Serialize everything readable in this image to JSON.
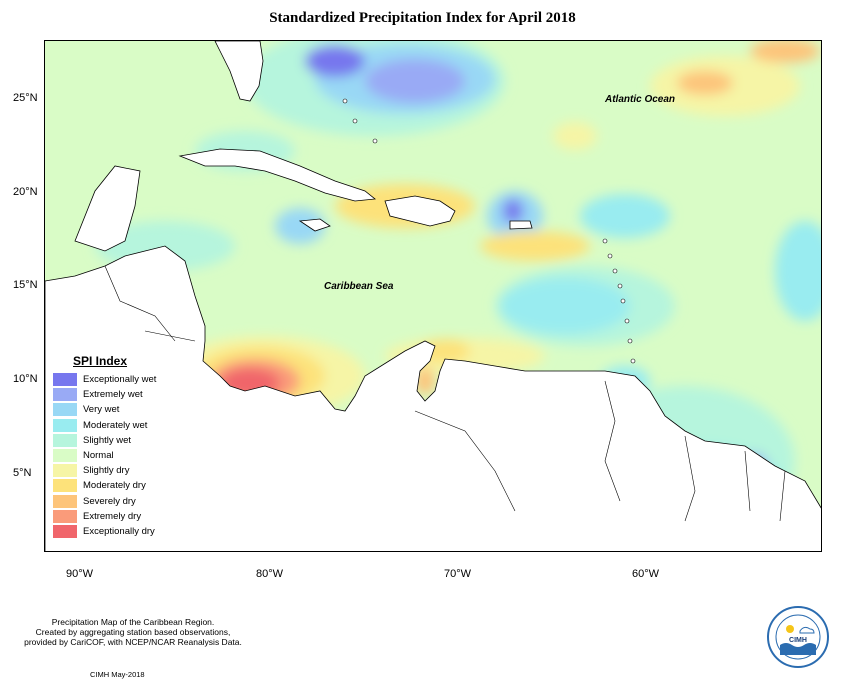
{
  "title": "Standardized Precipitation Index for April 2018",
  "lat_ticks": [
    "25°N",
    "20°N",
    "15°N",
    "10°N",
    "5°N"
  ],
  "lon_ticks": [
    "90°W",
    "80°W",
    "70°W",
    "60°W"
  ],
  "labels": {
    "atlantic": "Atlantic Ocean",
    "caribbean": "Caribbean Sea"
  },
  "legend": {
    "title": "SPI Index",
    "items": [
      {
        "label": "Exceptionally wet",
        "color": "#7777ee"
      },
      {
        "label": "Extremely wet",
        "color": "#99aaf5"
      },
      {
        "label": "Very wet",
        "color": "#99d8f5"
      },
      {
        "label": "Moderately wet",
        "color": "#99ecf0"
      },
      {
        "label": "Slightly wet",
        "color": "#b6f5dd"
      },
      {
        "label": "Normal",
        "color": "#d9fcc6"
      },
      {
        "label": "Slightly dry",
        "color": "#f6f5a6"
      },
      {
        "label": "Moderately dry",
        "color": "#fde27a"
      },
      {
        "label": "Severely dry",
        "color": "#fdc47a"
      },
      {
        "label": "Extremely dry",
        "color": "#fa9b7a"
      },
      {
        "label": "Exceptionally dry",
        "color": "#f0656b"
      }
    ]
  },
  "footer": {
    "line1": "Precipitation Map of the Caribbean Region.",
    "line2": "Created by aggregating station based observations,",
    "line3": "provided by CariCOF, with NCEP/NCAR Reanalysis Data.",
    "credit": "CIMH May-2018",
    "logo_text": "CIMH"
  }
}
